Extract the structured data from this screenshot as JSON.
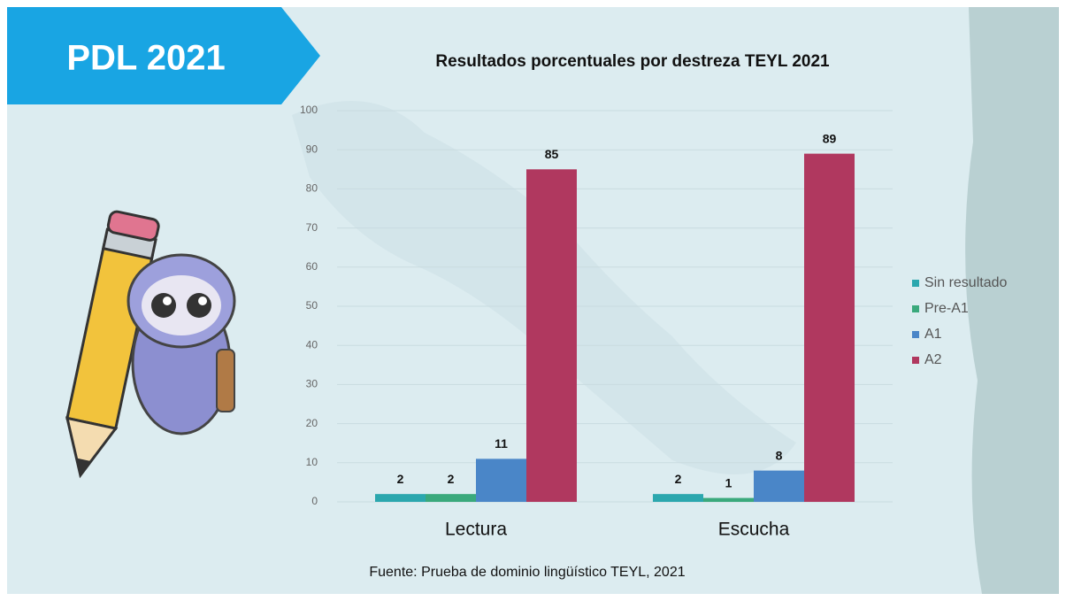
{
  "banner": "PDL 2021",
  "chart_data": {
    "type": "bar",
    "title": "Resultados porcentuales por destreza TEYL 2021",
    "categories": [
      "Lectura",
      "Escucha"
    ],
    "series": [
      {
        "name": "Sin resultado",
        "color": "#2ba7ae",
        "values": [
          2,
          2
        ]
      },
      {
        "name": "Pre-A1",
        "color": "#3aa97c",
        "values": [
          2,
          1
        ]
      },
      {
        "name": "A1",
        "color": "#4a86c8",
        "values": [
          11,
          8
        ]
      },
      {
        "name": "A2",
        "color": "#b0385f",
        "values": [
          85,
          89
        ]
      }
    ],
    "ylim": [
      0,
      100
    ],
    "yticks": [
      0,
      10,
      20,
      30,
      40,
      50,
      60,
      70,
      80,
      90,
      100
    ],
    "grid": true,
    "legend": "right"
  },
  "source": "Fuente: Prueba de dominio lingüístico TEYL, 2021"
}
